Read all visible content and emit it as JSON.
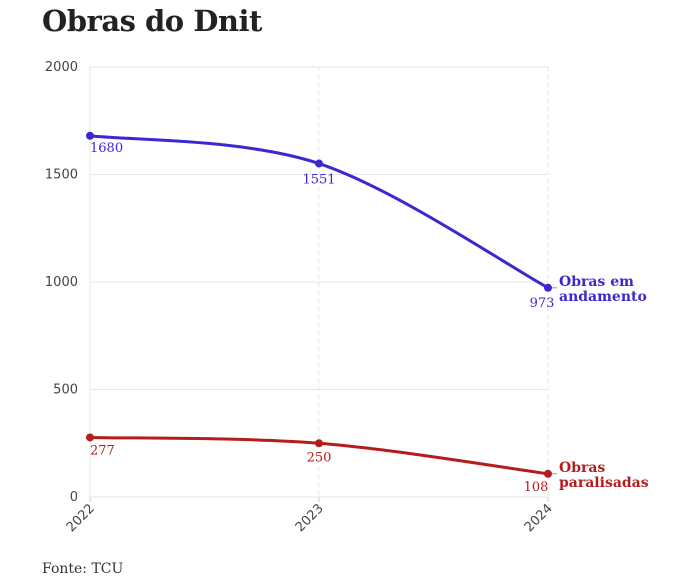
{
  "title": "Obras do Dnit",
  "source": "Fonte: TCU",
  "colors": {
    "series_1": "#3a28d3",
    "series_2": "#b51c1c",
    "grid": "#e6e6e6"
  },
  "chart_data": {
    "type": "line",
    "title": "Obras do Dnit",
    "xlabel": "",
    "ylabel": "",
    "x": [
      "2022",
      "2023",
      "2024"
    ],
    "ylim": [
      0,
      2000
    ],
    "yticks": [
      0,
      500,
      1000,
      1500,
      2000
    ],
    "grid": true,
    "series": [
      {
        "name": "Obras em andamento",
        "name_lines": [
          "Obras em",
          "andamento"
        ],
        "values": [
          1680,
          1551,
          973
        ],
        "color": "#3a28d3"
      },
      {
        "name": "Obras paralisadas",
        "name_lines": [
          "Obras",
          "paralisadas"
        ],
        "values": [
          277,
          250,
          108
        ],
        "color": "#b51c1c"
      }
    ]
  }
}
